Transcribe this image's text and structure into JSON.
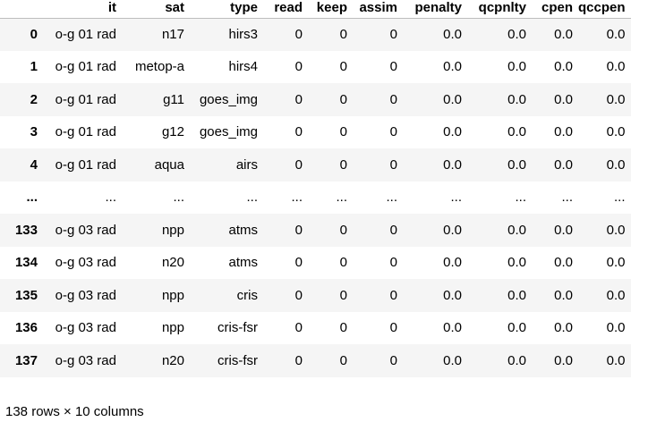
{
  "table": {
    "index_header": "",
    "columns": [
      "it",
      "sat",
      "type",
      "read",
      "keep",
      "assim",
      "penalty",
      "qcpnlty",
      "cpen",
      "qccpen"
    ],
    "rows": [
      {
        "index": "0",
        "cells": [
          "o-g 01 rad",
          "n17",
          "hirs3",
          "0",
          "0",
          "0",
          "0.0",
          "0.0",
          "0.0",
          "0.0"
        ]
      },
      {
        "index": "1",
        "cells": [
          "o-g 01 rad",
          "metop-a",
          "hirs4",
          "0",
          "0",
          "0",
          "0.0",
          "0.0",
          "0.0",
          "0.0"
        ]
      },
      {
        "index": "2",
        "cells": [
          "o-g 01 rad",
          "g11",
          "goes_img",
          "0",
          "0",
          "0",
          "0.0",
          "0.0",
          "0.0",
          "0.0"
        ]
      },
      {
        "index": "3",
        "cells": [
          "o-g 01 rad",
          "g12",
          "goes_img",
          "0",
          "0",
          "0",
          "0.0",
          "0.0",
          "0.0",
          "0.0"
        ]
      },
      {
        "index": "4",
        "cells": [
          "o-g 01 rad",
          "aqua",
          "airs",
          "0",
          "0",
          "0",
          "0.0",
          "0.0",
          "0.0",
          "0.0"
        ]
      },
      {
        "index": "...",
        "cells": [
          "...",
          "...",
          "...",
          "...",
          "...",
          "...",
          "...",
          "...",
          "...",
          "..."
        ]
      },
      {
        "index": "133",
        "cells": [
          "o-g 03 rad",
          "npp",
          "atms",
          "0",
          "0",
          "0",
          "0.0",
          "0.0",
          "0.0",
          "0.0"
        ]
      },
      {
        "index": "134",
        "cells": [
          "o-g 03 rad",
          "n20",
          "atms",
          "0",
          "0",
          "0",
          "0.0",
          "0.0",
          "0.0",
          "0.0"
        ]
      },
      {
        "index": "135",
        "cells": [
          "o-g 03 rad",
          "npp",
          "cris",
          "0",
          "0",
          "0",
          "0.0",
          "0.0",
          "0.0",
          "0.0"
        ]
      },
      {
        "index": "136",
        "cells": [
          "o-g 03 rad",
          "npp",
          "cris-fsr",
          "0",
          "0",
          "0",
          "0.0",
          "0.0",
          "0.0",
          "0.0"
        ]
      },
      {
        "index": "137",
        "cells": [
          "o-g 03 rad",
          "n20",
          "cris-fsr",
          "0",
          "0",
          "0",
          "0.0",
          "0.0",
          "0.0",
          "0.0"
        ]
      }
    ]
  },
  "footer": {
    "text": "138 rows × 10 columns"
  }
}
